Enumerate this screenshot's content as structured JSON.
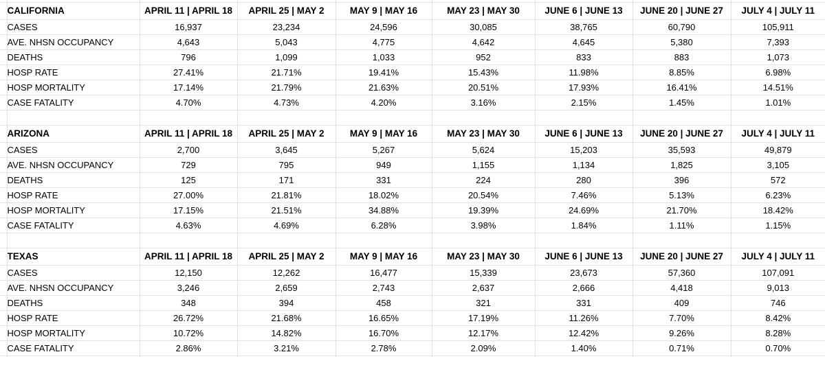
{
  "app": {
    "type": "spreadsheet-grid",
    "background_color": "#ffffff",
    "gridline_color": "#e2e2e2",
    "text_color": "#000000"
  },
  "columns": [
    "APRIL 11 | APRIL 18",
    "APRIL 25 | MAY 2",
    "MAY 9 | MAY 16",
    "MAY 23 | MAY 30",
    "JUNE 6 | JUNE 13",
    "JUNE 20 | JUNE 27",
    "JULY 4 | JULY 11"
  ],
  "metric_labels": [
    "CASES",
    "AVE. NHSN OCCUPANCY",
    "DEATHS",
    "HOSP RATE",
    "HOSP MORTALITY",
    "CASE FATALITY"
  ],
  "sections": [
    {
      "state": "CALIFORNIA",
      "rows": [
        {
          "label": "CASES",
          "values": [
            "16,937",
            "23,234",
            "24,596",
            "30,085",
            "38,765",
            "60,790",
            "105,911"
          ]
        },
        {
          "label": "AVE. NHSN OCCUPANCY",
          "values": [
            "4,643",
            "5,043",
            "4,775",
            "4,642",
            "4,645",
            "5,380",
            "7,393"
          ]
        },
        {
          "label": "DEATHS",
          "values": [
            "796",
            "1,099",
            "1,033",
            "952",
            "833",
            "883",
            "1,073"
          ]
        },
        {
          "label": "HOSP RATE",
          "values": [
            "27.41%",
            "21.71%",
            "19.41%",
            "15.43%",
            "11.98%",
            "8.85%",
            "6.98%"
          ]
        },
        {
          "label": "HOSP MORTALITY",
          "values": [
            "17.14%",
            "21.79%",
            "21.63%",
            "20.51%",
            "17.93%",
            "16.41%",
            "14.51%"
          ]
        },
        {
          "label": "CASE FATALITY",
          "values": [
            "4.70%",
            "4.73%",
            "4.20%",
            "3.16%",
            "2.15%",
            "1.45%",
            "1.01%"
          ]
        }
      ]
    },
    {
      "state": "ARIZONA",
      "rows": [
        {
          "label": "CASES",
          "values": [
            "2,700",
            "3,645",
            "5,267",
            "5,624",
            "15,203",
            "35,593",
            "49,879"
          ]
        },
        {
          "label": "AVE. NHSN OCCUPANCY",
          "values": [
            "729",
            "795",
            "949",
            "1,155",
            "1,134",
            "1,825",
            "3,105"
          ]
        },
        {
          "label": "DEATHS",
          "values": [
            "125",
            "171",
            "331",
            "224",
            "280",
            "396",
            "572"
          ]
        },
        {
          "label": "HOSP RATE",
          "values": [
            "27.00%",
            "21.81%",
            "18.02%",
            "20.54%",
            "7.46%",
            "5.13%",
            "6.23%"
          ]
        },
        {
          "label": "HOSP MORTALITY",
          "values": [
            "17.15%",
            "21.51%",
            "34.88%",
            "19.39%",
            "24.69%",
            "21.70%",
            "18.42%"
          ]
        },
        {
          "label": "CASE FATALITY",
          "values": [
            "4.63%",
            "4.69%",
            "6.28%",
            "3.98%",
            "1.84%",
            "1.11%",
            "1.15%"
          ]
        }
      ]
    },
    {
      "state": "TEXAS",
      "rows": [
        {
          "label": "CASES",
          "values": [
            "12,150",
            "12,262",
            "16,477",
            "15,339",
            "23,673",
            "57,360",
            "107,091"
          ]
        },
        {
          "label": "AVE. NHSN OCCUPANCY",
          "values": [
            "3,246",
            "2,659",
            "2,743",
            "2,637",
            "2,666",
            "4,418",
            "9,013"
          ]
        },
        {
          "label": "DEATHS",
          "values": [
            "348",
            "394",
            "458",
            "321",
            "331",
            "409",
            "746"
          ]
        },
        {
          "label": "HOSP RATE",
          "values": [
            "26.72%",
            "21.68%",
            "16.65%",
            "17.19%",
            "11.26%",
            "7.70%",
            "8.42%"
          ]
        },
        {
          "label": "HOSP MORTALITY",
          "values": [
            "10.72%",
            "14.82%",
            "16.70%",
            "12.17%",
            "12.42%",
            "9.26%",
            "8.28%"
          ]
        },
        {
          "label": "CASE FATALITY",
          "values": [
            "2.86%",
            "3.21%",
            "2.78%",
            "2.09%",
            "1.40%",
            "0.71%",
            "0.70%"
          ]
        }
      ]
    }
  ]
}
